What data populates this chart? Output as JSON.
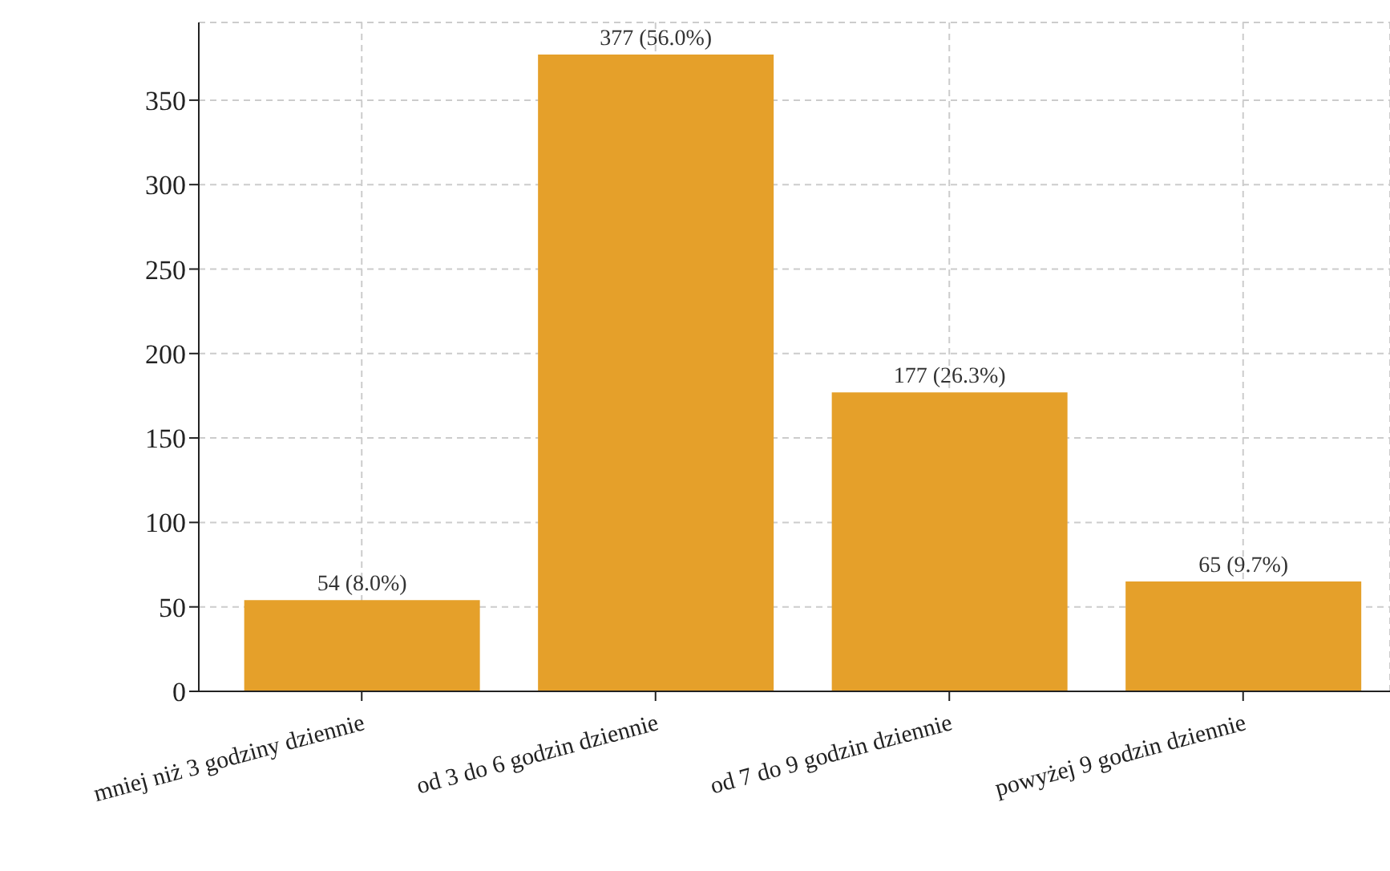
{
  "chart_data": {
    "type": "bar",
    "categories": [
      "mniej niż 3 godziny dziennie",
      "od 3 do 6 godzin dziennie",
      "od 7 do 9 godzin dziennie",
      "powyżej 9 godzin dziennie"
    ],
    "values": [
      54,
      377,
      177,
      65
    ],
    "value_labels": [
      "54 (8.0%)",
      "377 (56.0%)",
      "177 (26.3%)",
      "65 (9.7%)"
    ],
    "color": "#e5a02a",
    "ylim": [
      0,
      396
    ],
    "yticks": [
      0,
      50,
      100,
      150,
      200,
      250,
      300,
      350
    ],
    "grid": true
  }
}
